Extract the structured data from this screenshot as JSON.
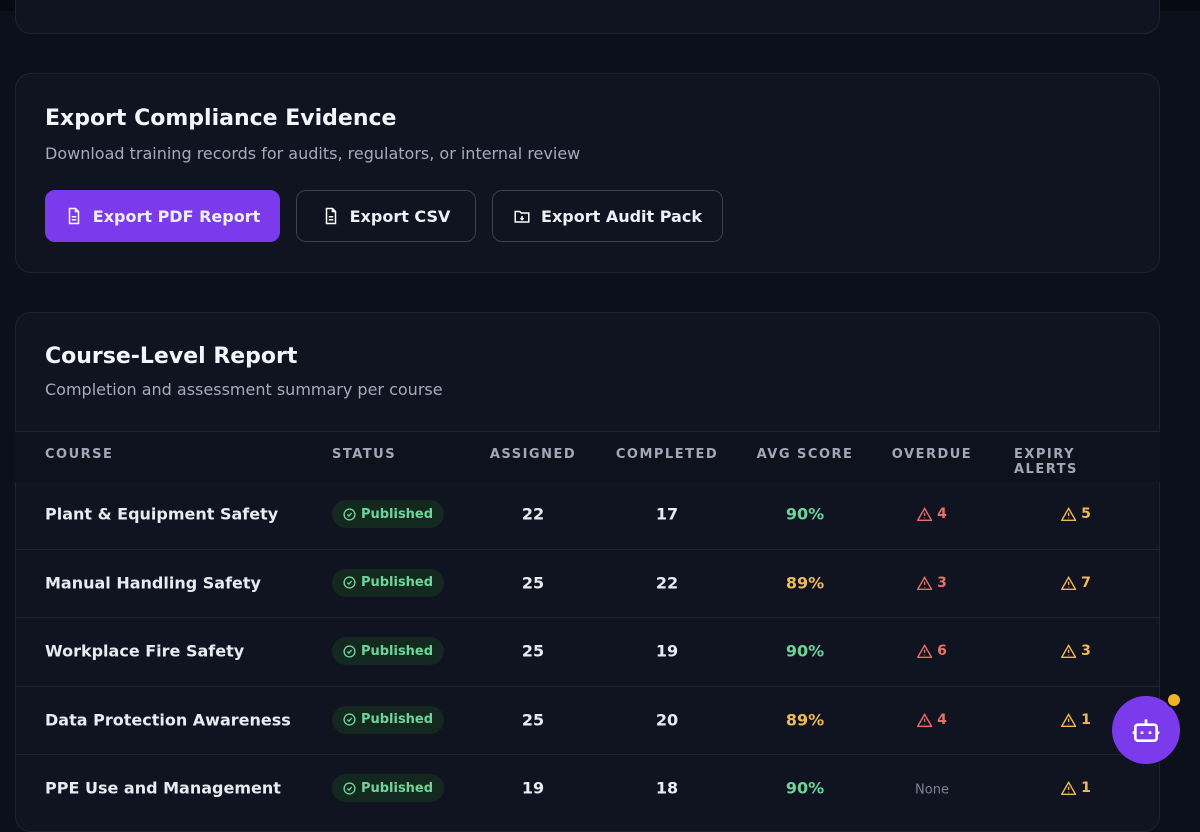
{
  "export": {
    "title": "Export Compliance Evidence",
    "subtitle": "Download training records for audits, regulators, or internal review",
    "buttons": [
      "Export PDF Report",
      "Export CSV",
      "Export Audit Pack"
    ]
  },
  "report": {
    "title": "Course-Level Report",
    "subtitle": "Completion and assessment summary per course",
    "table": {
      "headers": [
        "COURSE",
        "STATUS",
        "ASSIGNED",
        "COMPLETED",
        "AVG SCORE",
        "OVERDUE",
        "EXPIRY ALERTS"
      ],
      "rows": [
        [
          "Plant & Equipment Safety",
          "Published",
          22,
          17,
          "90%",
          4,
          5
        ],
        [
          "Manual Handling Safety",
          "Published",
          25,
          22,
          "89%",
          3,
          7
        ],
        [
          "Workplace Fire Safety",
          "Published",
          25,
          19,
          "90%",
          6,
          3
        ],
        [
          "Data Protection Awareness",
          "Published",
          25,
          20,
          "89%",
          4,
          1
        ],
        [
          "PPE Use and Management",
          "Published",
          19,
          18,
          "90%",
          "None",
          1
        ]
      ]
    }
  }
}
